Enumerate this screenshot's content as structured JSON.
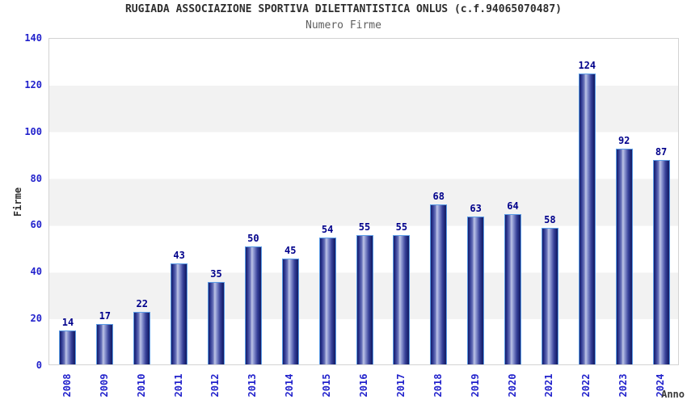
{
  "header": {
    "title": "RUGIADA ASSOCIAZIONE SPORTIVA DILETTANTISTICA ONLUS (c.f.94065070487)",
    "subtitle": "Numero Firme"
  },
  "chart_data": {
    "type": "bar",
    "title": "Numero Firme",
    "categories": [
      "2008",
      "2009",
      "2010",
      "2011",
      "2012",
      "2013",
      "2014",
      "2015",
      "2016",
      "2017",
      "2018",
      "2019",
      "2020",
      "2021",
      "2022",
      "2023",
      "2024"
    ],
    "values": [
      14,
      17,
      22,
      43,
      35,
      50,
      45,
      54,
      55,
      55,
      68,
      63,
      64,
      58,
      124,
      92,
      87
    ],
    "xlabel": "Anno",
    "ylabel": "Firme",
    "ylim": [
      0,
      140
    ],
    "ytick_step": 20,
    "grid": "alternating horizontal bands",
    "legend_position": "none",
    "colors": {
      "bar_fill_dark": "#161e66",
      "bar_fill_light": "#bdc4e6",
      "bar_border": "#5b9ce6",
      "tick_label": "#2222cc",
      "value_label": "#00008b",
      "band_alt": "#f2f2f2",
      "plot_border": "#d3d3d3",
      "title": "#2e2e2e",
      "subtitle": "#5f5f5f"
    }
  }
}
